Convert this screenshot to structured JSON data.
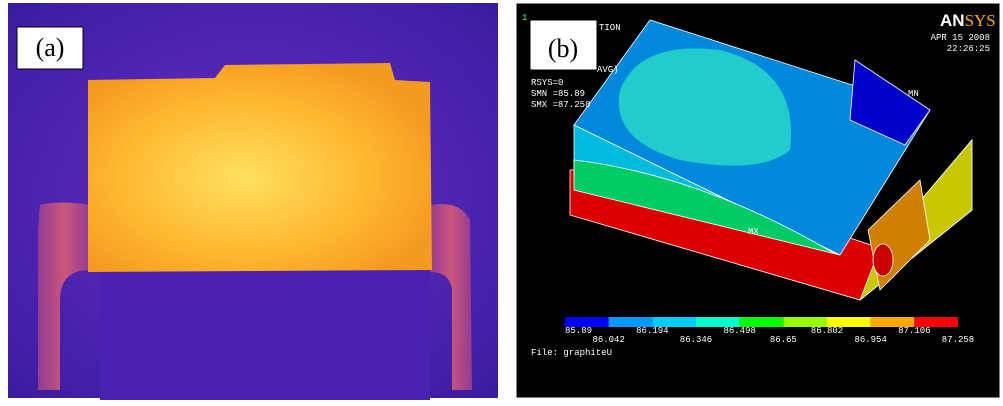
{
  "panel_a": {
    "label": "(a)"
  },
  "panel_b": {
    "label": "(b)",
    "window_number": "1",
    "logo_an": "AN",
    "logo_sys": "SYS",
    "date": "APR 15 2008",
    "time": "22:26:25",
    "header_partial_1": "TION",
    "header_partial_2": "AVG)",
    "rsys": "RSYS=0",
    "smn": "SMN =85.89",
    "smx": "SMX =87.258",
    "mn_marker": "MN",
    "mx_marker": "MX",
    "file": "File: graphiteU",
    "colorbar": {
      "colors": [
        "#0000ff",
        "#0099ff",
        "#00ccff",
        "#00ffcc",
        "#00ff00",
        "#99ff00",
        "#ffff00",
        "#ffaa00",
        "#ff0000"
      ],
      "labels": [
        "85.89",
        "86.042",
        "86.194",
        "86.346",
        "86.498",
        "86.65",
        "86.802",
        "86.954",
        "87.106",
        "87.258"
      ]
    }
  }
}
